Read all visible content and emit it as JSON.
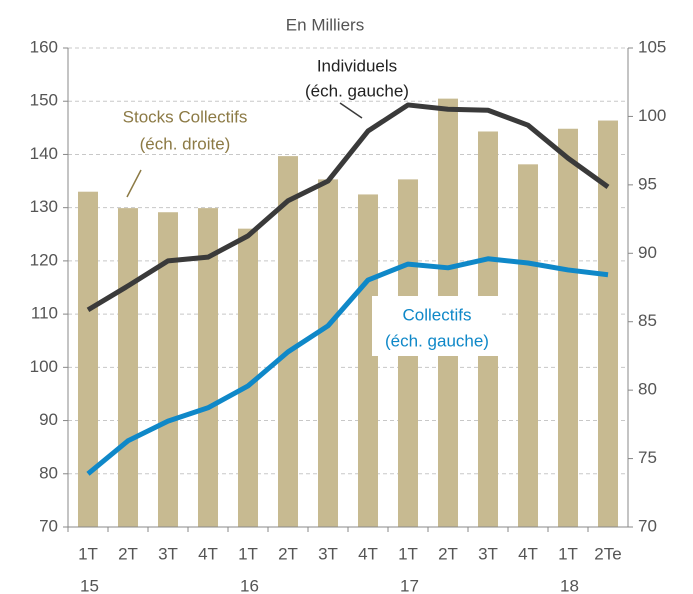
{
  "chart_data": {
    "type": "bar_line_combo",
    "title": "En Milliers",
    "categories": [
      "1T",
      "2T",
      "3T",
      "4T",
      "1T",
      "2T",
      "3T",
      "4T",
      "1T",
      "2T",
      "3T",
      "4T",
      "1T",
      "2Te"
    ],
    "years": [
      "15",
      "16",
      "17",
      "18"
    ],
    "ylim": [
      70,
      160
    ],
    "yticks": [
      70,
      80,
      90,
      100,
      110,
      120,
      130,
      140,
      150,
      160
    ],
    "y2lim": [
      70,
      105
    ],
    "y2ticks": [
      70,
      75,
      80,
      85,
      90,
      95,
      100,
      105
    ],
    "grid": true,
    "series": [
      {
        "name": "Stocks Collectifs (éch. droite)",
        "kind": "bar",
        "axis": "y2",
        "color": "#c7ba91",
        "values": [
          94.5,
          93.3,
          93.0,
          93.3,
          91.8,
          97.1,
          95.4,
          94.3,
          95.4,
          101.3,
          98.9,
          96.5,
          99.1,
          99.7
        ]
      },
      {
        "name": "Individuels (éch. gauche)",
        "kind": "line",
        "axis": "y",
        "color": "#3a3a3a",
        "values": [
          110.8,
          115.3,
          120.0,
          120.7,
          124.7,
          131.3,
          135.0,
          144.4,
          149.3,
          148.5,
          148.3,
          145.5,
          139.3,
          133.9
        ]
      },
      {
        "name": "Collectifs (éch. gauche)",
        "kind": "line",
        "axis": "y",
        "color": "#0f88c8",
        "values": [
          80.0,
          86.2,
          89.9,
          92.4,
          96.5,
          102.9,
          107.8,
          116.4,
          119.4,
          118.7,
          120.4,
          119.6,
          118.3,
          117.4
        ]
      }
    ],
    "annotations": [
      {
        "lines": [
          "Stocks Collectifs",
          "(éch. droite)"
        ],
        "color": "#8c7a45"
      },
      {
        "lines": [
          "Individuels",
          "(éch. gauche)"
        ],
        "color": "#222222"
      },
      {
        "lines": [
          "Collectifs",
          "(éch. gauche)"
        ],
        "color": "#0f88c8"
      }
    ]
  }
}
